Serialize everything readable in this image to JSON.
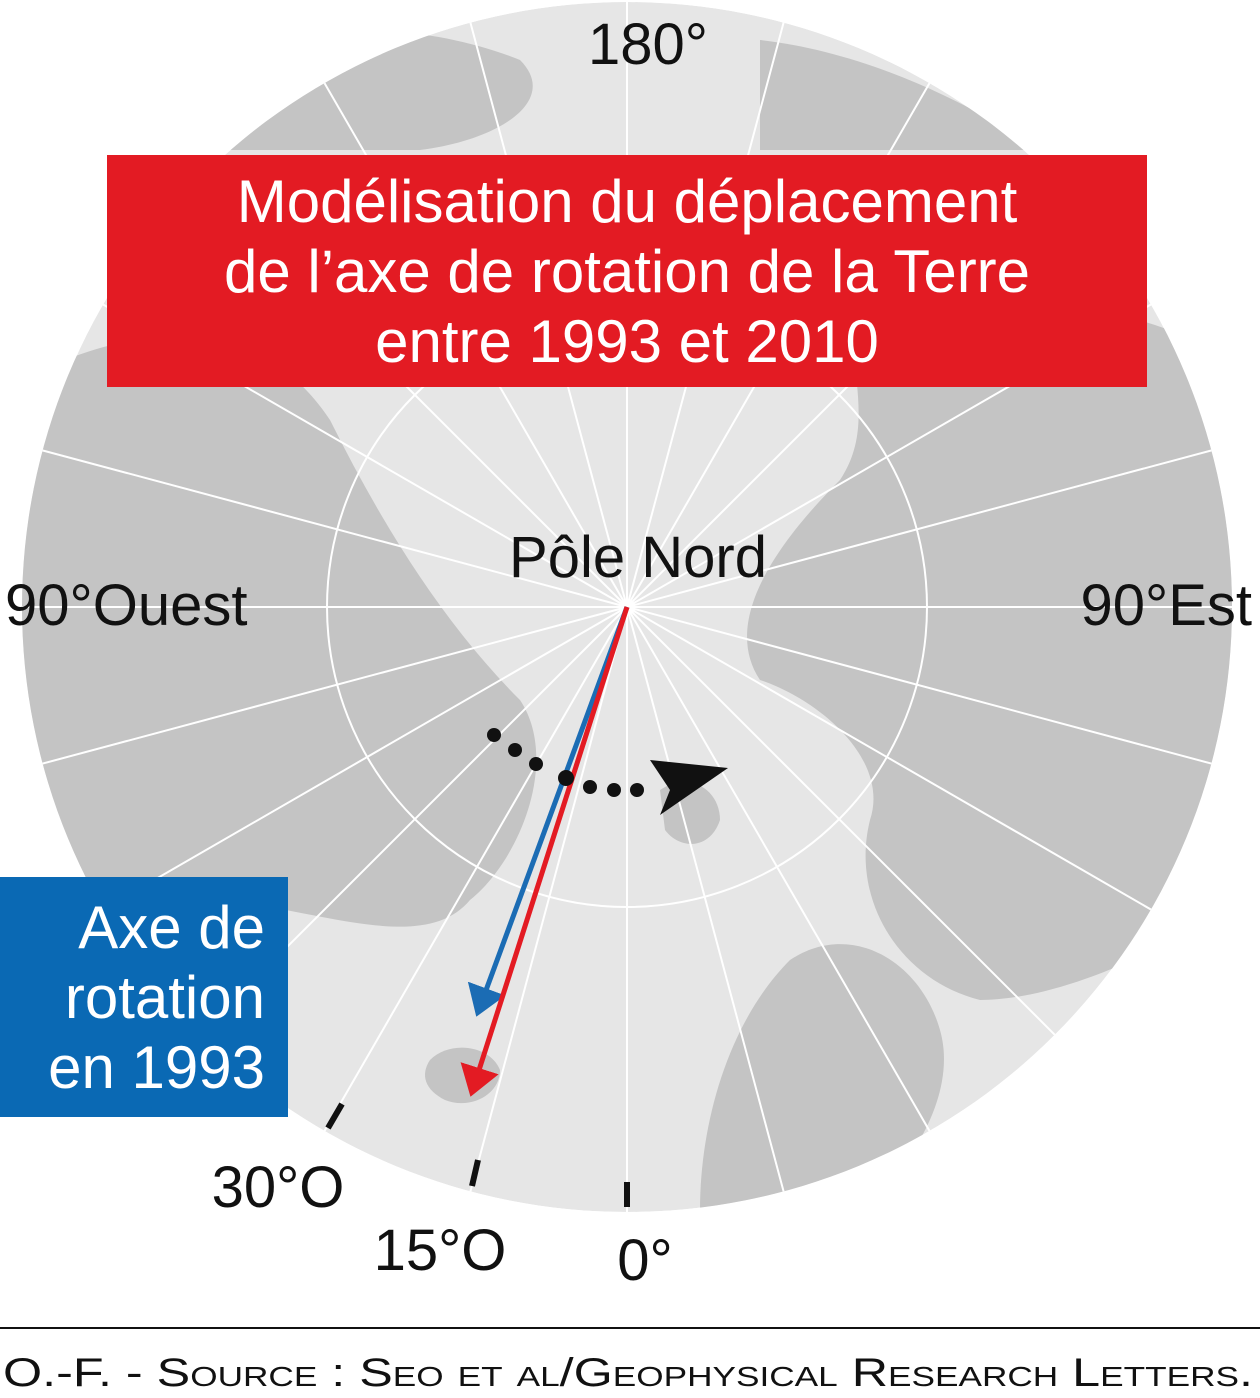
{
  "labels": {
    "top": "180°",
    "west": "90°Ouest",
    "east": "90°Est",
    "pole": "Pôle Nord",
    "lon_30w": "30°O",
    "lon_15w": "15°O",
    "lon_0": "0°"
  },
  "title": {
    "lines": [
      "Modélisation du déplacement",
      "de l’axe de rotation de la Terre",
      "entre 1993 et 2010"
    ]
  },
  "legend": {
    "lines": [
      "Axe de",
      "rotation",
      "en 1993"
    ]
  },
  "source": "O.-F. - Source : Seo et al/Geophysical Research Letters."
}
